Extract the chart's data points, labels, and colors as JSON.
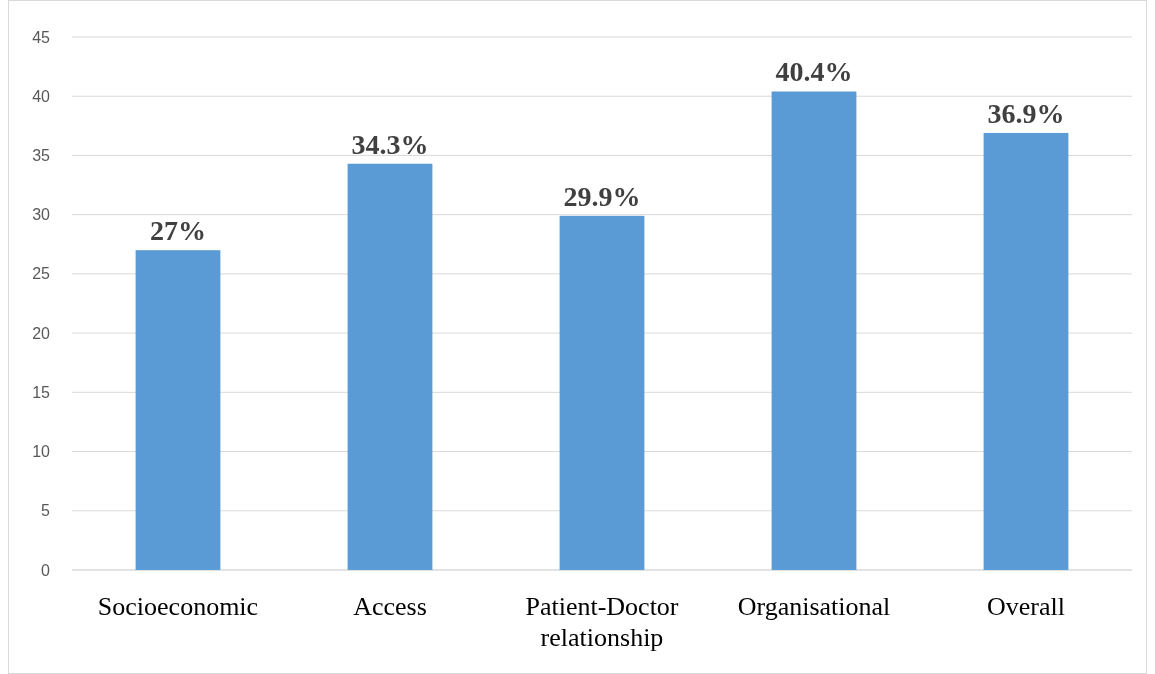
{
  "chart_data": {
    "type": "bar",
    "categories": [
      "Socioeconomic",
      "Access",
      "Patient-Doctor relationship",
      "Organisational",
      "Overall"
    ],
    "values": [
      27,
      34.3,
      29.9,
      40.4,
      36.9
    ],
    "value_labels": [
      "27%",
      "34.3%",
      "29.9%",
      "40.4%",
      "36.9%"
    ],
    "color": "#5b9bd5",
    "ylim": [
      0,
      45
    ],
    "yticks": [
      0,
      5,
      10,
      15,
      20,
      25,
      30,
      35,
      40,
      45
    ],
    "grid": "y"
  }
}
